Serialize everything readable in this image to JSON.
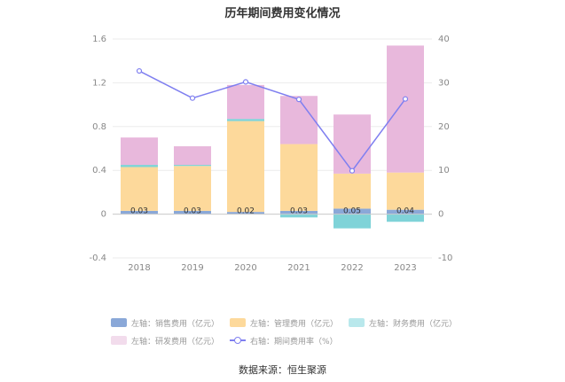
{
  "title": "历年期间费用变化情况",
  "source": "数据来源：恒生聚源",
  "chart_data": {
    "type": "bar",
    "title": "历年期间费用变化情况",
    "categories": [
      "2018",
      "2019",
      "2020",
      "2021",
      "2022",
      "2023"
    ],
    "stacked": true,
    "series": [
      {
        "name": "左轴：销售费用（亿元）",
        "axis": "left",
        "type": "bar",
        "color": "#8aa8d8",
        "values": [
          0.03,
          0.03,
          0.02,
          0.03,
          0.05,
          0.04
        ]
      },
      {
        "name": "左轴：管理费用（亿元）",
        "axis": "left",
        "type": "bar",
        "color": "#fdd99b",
        "values": [
          0.4,
          0.41,
          0.83,
          0.61,
          0.32,
          0.34
        ]
      },
      {
        "name": "左轴：财务费用（亿元）",
        "axis": "left",
        "type": "bar",
        "color": "#7fd3d8",
        "values": [
          0.02,
          0.01,
          0.02,
          -0.03,
          -0.13,
          -0.07
        ]
      },
      {
        "name": "左轴：研发费用（亿元）",
        "axis": "left",
        "type": "bar",
        "color": "#e8b8dc",
        "values": [
          0.25,
          0.17,
          0.31,
          0.44,
          0.54,
          1.16
        ]
      },
      {
        "name": "右轴：期间费用率（%）",
        "axis": "right",
        "type": "line",
        "color": "#7f7ff0",
        "values": [
          32.7,
          26.5,
          30.2,
          26.2,
          9.9,
          26.3
        ]
      }
    ],
    "data_labels": [
      "0.03",
      "0.03",
      "0.02",
      "0.03",
      "0.05",
      "0.04"
    ],
    "y_left": {
      "ticks": [
        "1.6",
        "1.2",
        "0.8",
        "0.4",
        "0",
        "-0.4"
      ],
      "range": [
        -0.4,
        1.6
      ]
    },
    "y_right": {
      "ticks": [
        "40",
        "30",
        "20",
        "10",
        "0",
        "-10"
      ],
      "range": [
        -10,
        40
      ]
    },
    "legend_position": "bottom",
    "grid": true
  }
}
